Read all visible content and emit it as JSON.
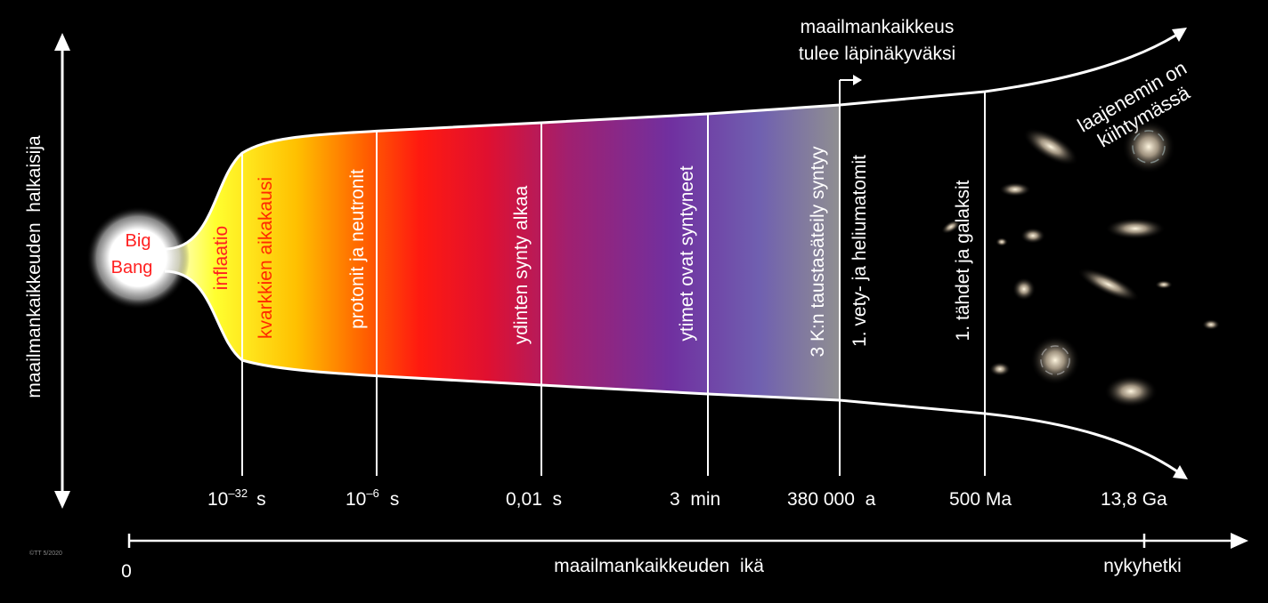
{
  "y_axis_label": "maailmankaikkeuden  halkaisija",
  "x_axis_label": "maailmankaikkeuden  ikä",
  "x_axis_start": "0",
  "x_axis_end": "nykyhetki",
  "big_bang": {
    "line1": "Big",
    "line2": "Bang"
  },
  "epochs": {
    "inflation": "inflaatio",
    "quark": "kvarkkien  aikakausi",
    "protons": "protonit  ja  neutronit",
    "nucleosynthesis_start": "ydinten  synty  alkaa",
    "nuclei_formed": "ytimet  ovat  syntyneet",
    "cmb": "3 K:n  taustasäteily  syntyy",
    "atoms": "1.  vety-  ja  heliumatomit",
    "stars": "1.  tähdet  ja  galaksit"
  },
  "times": {
    "t1_base": "10",
    "t1_exp": "–32",
    "t1_unit": "s",
    "t2_base": "10",
    "t2_exp": "–6",
    "t2_unit": "s",
    "t3": "0,01  s",
    "t4": "3  min",
    "t5": "380 000  a",
    "t6": "500 Ma",
    "t7": "13,8 Ga"
  },
  "transparency": {
    "line1": "maailmankaikkeus",
    "line2": "tulee  läpinäkyväksi"
  },
  "acceleration": {
    "line1": "laajenemin on",
    "line2": "kiihtymässä"
  },
  "copyright": "©TT 5/2020",
  "colors": {
    "background": "#000000",
    "text": "#ffffff",
    "big_bang_text": "#ff2020"
  }
}
